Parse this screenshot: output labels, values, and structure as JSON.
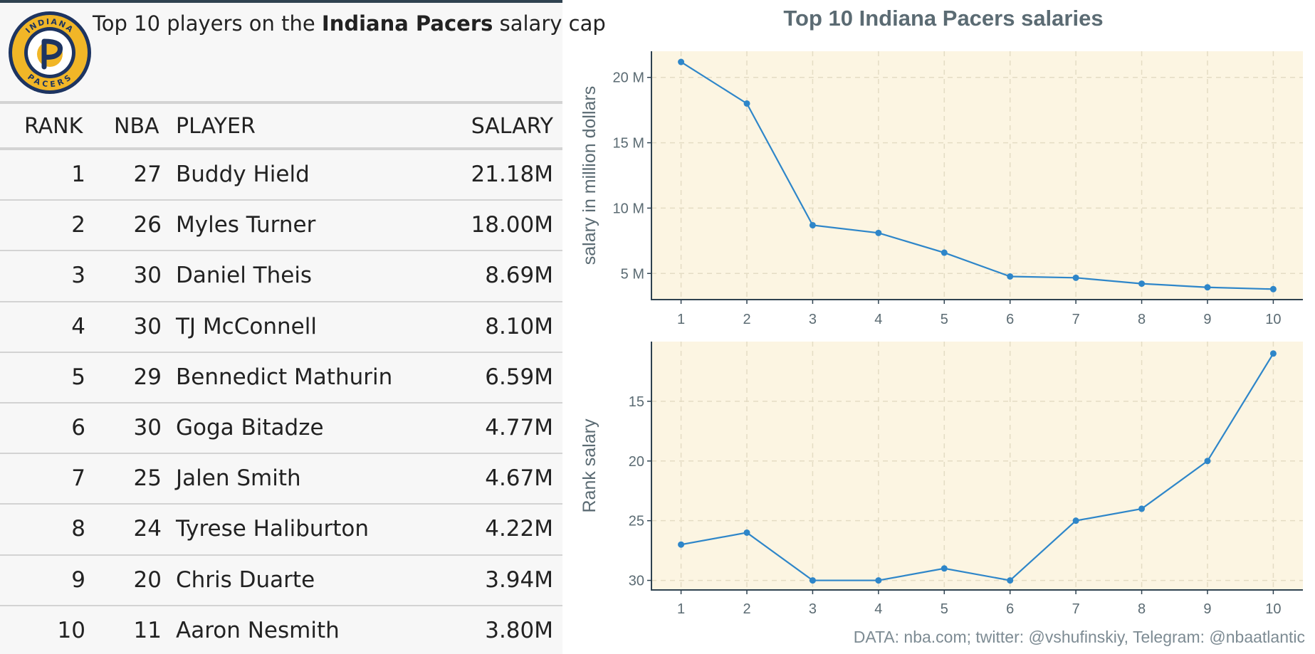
{
  "table": {
    "title_prefix": "Top 10 players on the ",
    "title_team": "Indiana Pacers",
    "title_suffix": " salary cap",
    "columns": {
      "rank": "RANK",
      "num": "NBA",
      "player": "PLAYER",
      "salary": "SALARY"
    },
    "rows": [
      {
        "rank": "1",
        "num": "27",
        "player": "Buddy Hield",
        "salary": "21.18M"
      },
      {
        "rank": "2",
        "num": "26",
        "player": "Myles Turner",
        "salary": "18.00M"
      },
      {
        "rank": "3",
        "num": "30",
        "player": "Daniel Theis",
        "salary": "8.69M"
      },
      {
        "rank": "4",
        "num": "30",
        "player": "TJ McConnell",
        "salary": "8.10M"
      },
      {
        "rank": "5",
        "num": "29",
        "player": "Bennedict Mathurin",
        "salary": "6.59M"
      },
      {
        "rank": "6",
        "num": "30",
        "player": "Goga Bitadze",
        "salary": "4.77M"
      },
      {
        "rank": "7",
        "num": "25",
        "player": "Jalen Smith",
        "salary": "4.67M"
      },
      {
        "rank": "8",
        "num": "24",
        "player": "Tyrese Haliburton",
        "salary": "4.22M"
      },
      {
        "rank": "9",
        "num": "20",
        "player": "Chris Duarte",
        "salary": "3.94M"
      },
      {
        "rank": "10",
        "num": "11",
        "player": "Aaron Nesmith",
        "salary": "3.80M"
      }
    ]
  },
  "logo": {
    "text_top": "INDIANA",
    "text_bottom": "PACERS",
    "colors": {
      "navy": "#1d3461",
      "gold": "#f1b627",
      "ring": "#f7d070"
    }
  },
  "chart_title": "Top 10 Indiana Pacers salaries",
  "source_note": "DATA: nba.com; twitter: @vshufinskiy, Telegram: @nbaatlantic",
  "colors": {
    "line": "#2e86c9",
    "panel_bg": "#fcf5e2",
    "axis": "#2f4250",
    "text": "#5b6b73",
    "grid": "#e4dcc4"
  },
  "chart_data": [
    {
      "type": "line",
      "x": [
        1,
        2,
        3,
        4,
        5,
        6,
        7,
        8,
        9,
        10
      ],
      "values": [
        21.18,
        18.0,
        8.69,
        8.1,
        6.59,
        4.77,
        4.67,
        4.22,
        3.94,
        3.8
      ],
      "xlabel": "",
      "ylabel": "salary in million dollars",
      "xticks": [
        "1",
        "2",
        "3",
        "4",
        "5",
        "6",
        "7",
        "8",
        "9",
        "10"
      ],
      "yticks": [
        "5 M",
        "10 M",
        "15 M",
        "20 M"
      ],
      "ytick_values": [
        5,
        10,
        15,
        20
      ],
      "ylim": [
        3.0,
        22.0
      ],
      "grid": true
    },
    {
      "type": "line",
      "x": [
        1,
        2,
        3,
        4,
        5,
        6,
        7,
        8,
        9,
        10
      ],
      "values": [
        27,
        26,
        30,
        30,
        29,
        30,
        25,
        24,
        20,
        11
      ],
      "xlabel": "",
      "ylabel": "Rank salary",
      "xticks": [
        "1",
        "2",
        "3",
        "4",
        "5",
        "6",
        "7",
        "8",
        "9",
        "10"
      ],
      "yticks": [
        "15",
        "20",
        "25",
        "30"
      ],
      "ytick_values": [
        15,
        20,
        25,
        30
      ],
      "ylim": [
        10.0,
        30.8
      ],
      "y_reversed": true,
      "grid": true
    }
  ]
}
